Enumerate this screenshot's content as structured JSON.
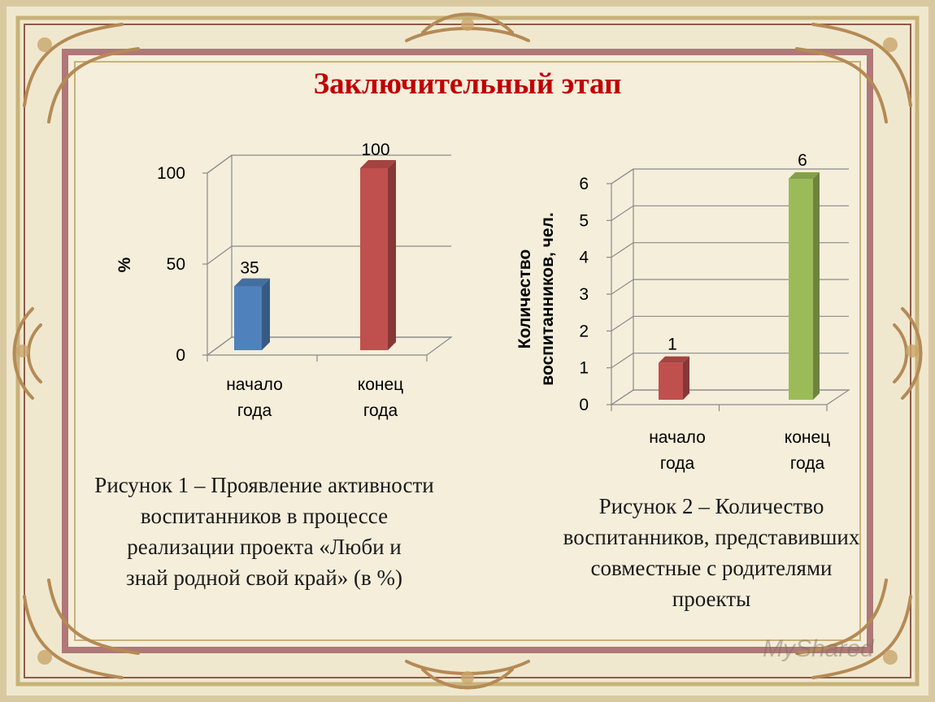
{
  "slide": {
    "title": "Заключительный этап",
    "watermark": "MyShared",
    "frame_color": "#b07878",
    "ornament_color": "#c8b27a"
  },
  "captions": [
    "Рисунок 1 – Проявление активности\nвоспитанников в процессе\nреализации проекта «Люби и\nзнай родной свой край» (в %)",
    "Рисунок 2 – Количество\nвоспитанников, представивших\nсовместные с родителями\nпроекты"
  ],
  "chart_data": [
    {
      "type": "bar",
      "title": "",
      "categories": [
        [
          "начало",
          "года"
        ],
        [
          "конец",
          "года"
        ]
      ],
      "values": [
        35,
        100
      ],
      "colors": [
        "#4f81bd",
        "#c0504d"
      ],
      "data_labels": [
        "35",
        "100"
      ],
      "ylabel": "%",
      "ylim": [
        0,
        100
      ],
      "yticks": [
        "0",
        "50",
        "100"
      ],
      "ytick_values": [
        0,
        50,
        100
      ],
      "grid": true,
      "legend": "none"
    },
    {
      "type": "bar",
      "title": "",
      "categories": [
        [
          "начало",
          "года"
        ],
        [
          "конец",
          "года"
        ]
      ],
      "values": [
        1,
        6
      ],
      "colors": [
        "#c0504d",
        "#9bbb59"
      ],
      "data_labels": [
        "1",
        "6"
      ],
      "ylabel": [
        "Количество",
        "воспитанников, чел."
      ],
      "ylim": [
        0,
        6
      ],
      "yticks": [
        "0",
        "1",
        "2",
        "3",
        "4",
        "5",
        "6"
      ],
      "ytick_values": [
        0,
        1,
        2,
        3,
        4,
        5,
        6
      ],
      "grid": true,
      "legend": "none"
    }
  ]
}
